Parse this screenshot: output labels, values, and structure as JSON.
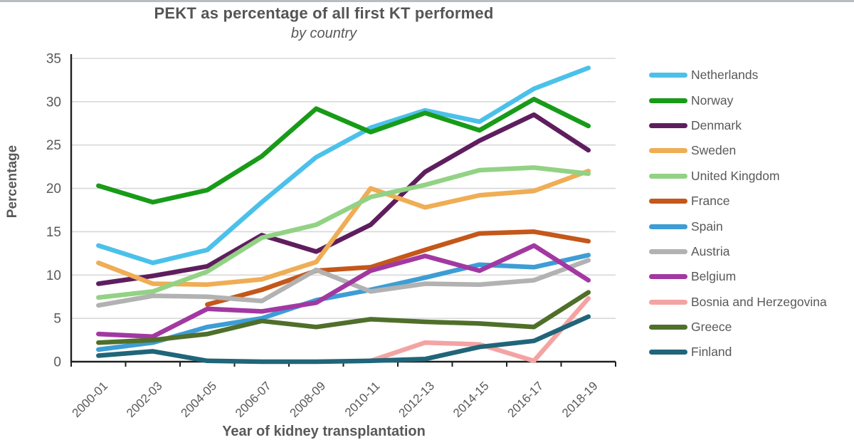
{
  "chart_data": {
    "type": "line",
    "title": "PEKT as percentage of all first KT performed",
    "subtitle": "by country",
    "xlabel": "Year of kidney transplantation",
    "ylabel": "Percentage",
    "ylim": [
      0,
      35
    ],
    "ytick_step": 5,
    "yticks": [
      0,
      5,
      10,
      15,
      20,
      25,
      30,
      35
    ],
    "grid": true,
    "legend_position": "right",
    "categories": [
      "2000-01",
      "2002-03",
      "2004-05",
      "2006-07",
      "2008-09",
      "2010-11",
      "2012-13",
      "2014-15",
      "2016-17",
      "2018-19"
    ],
    "series": [
      {
        "name": "Netherlands",
        "color": "#4bc1ea",
        "values": [
          13.4,
          11.4,
          12.9,
          18.4,
          23.6,
          27.0,
          29.0,
          27.7,
          31.5,
          33.9
        ]
      },
      {
        "name": "Norway",
        "color": "#189b18",
        "values": [
          20.3,
          18.4,
          19.8,
          23.7,
          29.2,
          26.5,
          28.7,
          26.7,
          30.3,
          27.2
        ]
      },
      {
        "name": "Denmark",
        "color": "#5e1e5e",
        "values": [
          9.0,
          9.9,
          11.0,
          14.6,
          12.7,
          15.8,
          21.9,
          25.5,
          28.5,
          24.4
        ]
      },
      {
        "name": "Sweden",
        "color": "#efad55",
        "values": [
          11.4,
          9.0,
          8.9,
          9.5,
          11.5,
          20.0,
          17.8,
          19.2,
          19.7,
          22.0
        ]
      },
      {
        "name": "United Kingdom",
        "color": "#92d284",
        "values": [
          7.4,
          8.1,
          10.4,
          14.3,
          15.8,
          19.0,
          20.4,
          22.1,
          22.4,
          21.7
        ]
      },
      {
        "name": "France",
        "color": "#c4571a",
        "values": [
          null,
          null,
          6.6,
          8.3,
          10.5,
          10.9,
          12.9,
          14.8,
          15.0,
          13.9
        ]
      },
      {
        "name": "Spain",
        "color": "#3d9dd5",
        "values": [
          1.4,
          2.2,
          4.0,
          5.0,
          7.1,
          8.3,
          9.7,
          11.2,
          10.9,
          12.3
        ]
      },
      {
        "name": "Austria",
        "color": "#b2b2b2",
        "values": [
          6.5,
          7.6,
          7.5,
          7.0,
          10.6,
          8.1,
          9.0,
          8.9,
          9.4,
          11.7
        ]
      },
      {
        "name": "Belgium",
        "color": "#a238a2",
        "values": [
          3.2,
          2.9,
          6.1,
          5.8,
          6.8,
          10.5,
          12.2,
          10.5,
          13.4,
          9.4
        ]
      },
      {
        "name": "Bosnia and Herzegovina",
        "color": "#f4a3a3",
        "values": [
          null,
          null,
          null,
          null,
          null,
          0.1,
          2.2,
          2.0,
          0.1,
          7.3
        ]
      },
      {
        "name": "Greece",
        "color": "#4f6f2a",
        "values": [
          2.2,
          2.5,
          3.2,
          4.7,
          4.0,
          4.9,
          4.6,
          4.4,
          4.0,
          8.0
        ]
      },
      {
        "name": "Finland",
        "color": "#206579",
        "values": [
          0.7,
          1.2,
          0.1,
          0.0,
          0.0,
          0.1,
          0.3,
          1.7,
          2.4,
          5.2
        ]
      }
    ],
    "colors": {
      "grid": "#d8d8d8",
      "axis": "#1f1f1f",
      "text": "#595959"
    }
  }
}
